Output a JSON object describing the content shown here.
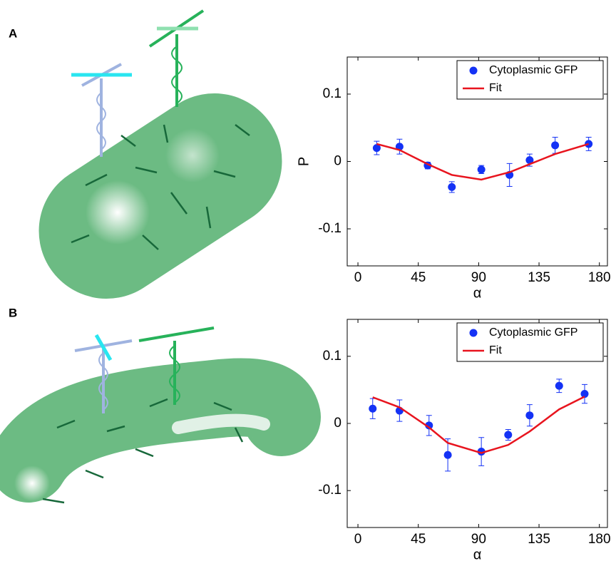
{
  "chart_data": [
    {
      "type": "scatter",
      "panel_label": "A",
      "ylabel": "P",
      "xlabel": "α",
      "xlim": [
        -8,
        186
      ],
      "ylim": [
        -0.155,
        0.155
      ],
      "xticks": [
        0,
        45,
        90,
        135,
        180
      ],
      "yticks": [
        -0.1,
        0,
        0.1
      ],
      "legend": "upper right",
      "series": [
        {
          "name": "Cytoplasmic GFP",
          "color": "#1432f5",
          "x": [
            14,
            31,
            52,
            70,
            92,
            113,
            128,
            147,
            172
          ],
          "values": [
            0.02,
            0.022,
            -0.006,
            -0.038,
            -0.012,
            -0.02,
            0.002,
            0.024,
            0.026
          ],
          "errors": [
            0.01,
            0.011,
            0.005,
            0.008,
            0.006,
            0.017,
            0.009,
            0.012,
            0.01
          ]
        },
        {
          "name": "Fit",
          "color": "#e8141e",
          "x": [
            14,
            31,
            52,
            70,
            92,
            113,
            128,
            147,
            172
          ],
          "values": [
            0.026,
            0.017,
            -0.004,
            -0.02,
            -0.027,
            -0.016,
            -0.004,
            0.011,
            0.026
          ]
        }
      ]
    },
    {
      "type": "scatter",
      "panel_label": "B",
      "xlabel": "α",
      "xlim": [
        -8,
        186
      ],
      "ylim": [
        -0.155,
        0.155
      ],
      "xticks": [
        0,
        45,
        90,
        135,
        180
      ],
      "yticks": [
        -0.1,
        0,
        0.1
      ],
      "legend": "upper right",
      "series": [
        {
          "name": "Cytoplasmic GFP",
          "color": "#1432f5",
          "x": [
            11,
            31,
            53,
            67,
            92,
            112,
            128,
            150,
            169
          ],
          "values": [
            0.022,
            0.019,
            -0.003,
            -0.047,
            -0.042,
            -0.017,
            0.012,
            0.056,
            0.044
          ],
          "errors": [
            0.015,
            0.016,
            0.015,
            0.024,
            0.021,
            0.008,
            0.016,
            0.01,
            0.014
          ]
        },
        {
          "name": "Fit",
          "color": "#e8141e",
          "x": [
            11,
            31,
            53,
            67,
            92,
            112,
            128,
            150,
            169
          ],
          "values": [
            0.039,
            0.024,
            -0.006,
            -0.029,
            -0.044,
            -0.032,
            -0.012,
            0.021,
            0.04
          ]
        }
      ]
    }
  ]
}
